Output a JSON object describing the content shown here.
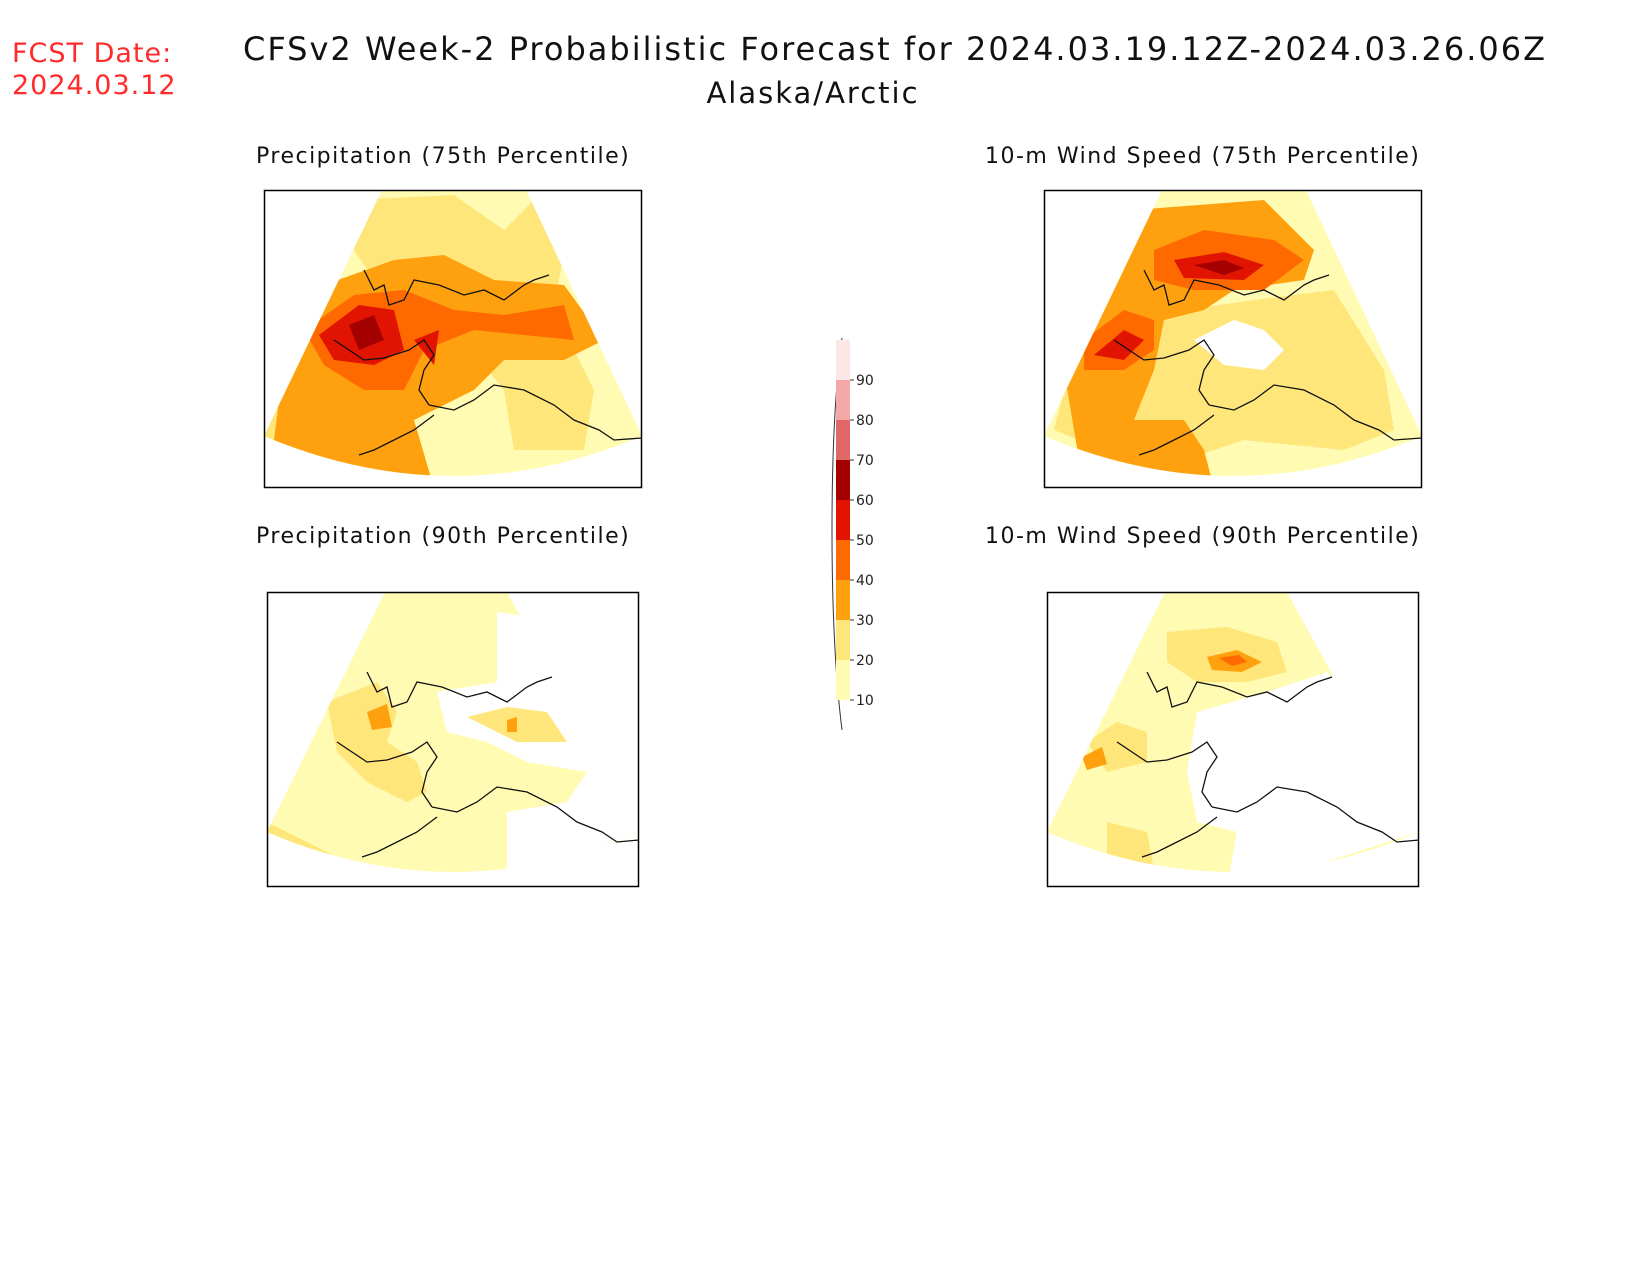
{
  "header": {
    "fcst_label": "FCST Date:",
    "fcst_date": "2024.03.12",
    "title": "CFSv2 Week-2 Probabilistic Forecast for 2024.03.19.12Z-2024.03.26.06Z",
    "region": "Alaska/Arctic"
  },
  "panels": [
    {
      "title": "Precipitation (75th Percentile)",
      "field": "precip75"
    },
    {
      "title": "10-m Wind Speed (75th Percentile)",
      "field": "wind75"
    },
    {
      "title": "Precipitation (90th Percentile)",
      "field": "precip90"
    },
    {
      "title": "10-m Wind Speed (90th Percentile)",
      "field": "wind90"
    }
  ],
  "colorbar": {
    "ticks": [
      "10",
      "20",
      "30",
      "40",
      "50",
      "60",
      "70",
      "80",
      "90"
    ],
    "colors": [
      "#fffbb3",
      "#ffe67a",
      "#ffa10f",
      "#ff6a00",
      "#e01400",
      "#a50000",
      "#e06868",
      "#f4a8a8",
      "#fde6e6"
    ]
  }
}
